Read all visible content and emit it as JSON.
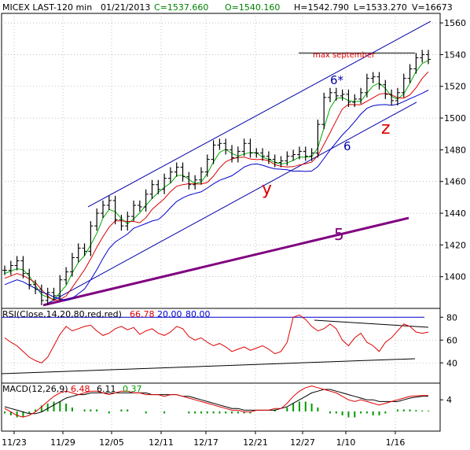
{
  "header": {
    "symbol": "MICEX LAST-120 min",
    "date": "01/21/2013",
    "close": "C=1537.660",
    "open": "O=1540.160",
    "high": "H=1542.790",
    "low": "L=1533.270",
    "volume": "V=16673"
  },
  "colors": {
    "price_bars": "#000000",
    "ma_fast": "#00aa00",
    "ma_mid": "#dd0000",
    "ma_slow": "#0000cc",
    "channel": "#0000aa",
    "trendline_5": "#800080",
    "wave_labels": "#dd0000",
    "rsi": "#dd0000",
    "macd": "#dd0000",
    "macd_signal": "#000000",
    "macd_hist": "#009900",
    "grid": "#999999"
  },
  "chart_data": [
    {
      "type": "candlestick",
      "panel": "price",
      "ylim": [
        1380,
        1566
      ],
      "y_ticks": [
        1400,
        1420,
        1440,
        1460,
        1480,
        1500,
        1520,
        1540,
        1560
      ],
      "x_tick_labels": [
        "11/23",
        "11/29",
        "12/05",
        "12/11",
        "12/17",
        "12/21",
        "12/27",
        "1/10",
        "1/16"
      ],
      "series": [
        {
          "name": "price",
          "values": [
            1404,
            1407,
            1410,
            1402,
            1395,
            1392,
            1385,
            1390,
            1388,
            1398,
            1403,
            1412,
            1418,
            1416,
            1432,
            1440,
            1445,
            1448,
            1436,
            1432,
            1438,
            1445,
            1444,
            1452,
            1458,
            1455,
            1462,
            1466,
            1469,
            1463,
            1458,
            1461,
            1466,
            1474,
            1483,
            1484,
            1480,
            1475,
            1479,
            1484,
            1478,
            1478,
            1476,
            1474,
            1472,
            1473,
            1476,
            1477,
            1479,
            1476,
            1478,
            1496,
            1513,
            1516,
            1514,
            1515,
            1510,
            1512,
            1516,
            1525,
            1526,
            1521,
            1515,
            1511,
            1516,
            1525,
            1531,
            1538,
            1540,
            1537
          ]
        }
      ],
      "annotations": {
        "max_label": "max september",
        "max_level": 1541,
        "channel_label": "6*",
        "lower_channel_label": "6",
        "trendline_label": "5",
        "wave_y": "y",
        "wave_z": "z"
      }
    },
    {
      "type": "line",
      "panel": "rsi",
      "title": "RSI(Close,14,20,80,red,red)",
      "current_value": "66.78",
      "low_level": "20.00",
      "high_level": "80.00",
      "y_ticks": [
        "80",
        "60",
        "40"
      ],
      "series": [
        {
          "name": "RSI",
          "values": [
            62,
            58,
            55,
            50,
            45,
            42,
            40,
            45,
            55,
            65,
            72,
            68,
            70,
            72,
            73,
            68,
            64,
            66,
            70,
            72,
            69,
            71,
            65,
            68,
            70,
            66,
            64,
            67,
            72,
            70,
            63,
            60,
            62,
            58,
            55,
            57,
            54,
            50,
            52,
            54,
            51,
            53,
            55,
            52,
            48,
            50,
            58,
            80,
            82,
            78,
            72,
            68,
            70,
            74,
            70,
            60,
            55,
            62,
            66,
            58,
            55,
            50,
            58,
            62,
            68,
            74,
            72,
            67,
            66,
            67
          ]
        }
      ]
    },
    {
      "type": "line",
      "panel": "macd",
      "title": "MACD(12,26,9)",
      "macd_value": "6.48",
      "signal_value": "6.11",
      "hist_value": "0.37",
      "y_ticks": [
        "4"
      ],
      "series": [
        {
          "name": "MACD",
          "values": [
            -1,
            -3,
            -5,
            -6,
            -5,
            -3,
            0,
            3,
            6,
            8,
            9,
            8,
            7,
            8,
            9,
            9,
            8,
            7,
            8,
            9,
            9,
            8,
            8,
            7,
            7,
            7,
            6,
            7,
            7,
            6,
            5,
            4,
            3,
            2,
            1,
            0,
            -1,
            -2,
            -2,
            -3,
            -3,
            -2,
            -2,
            -2,
            -1,
            -1,
            2,
            6,
            9,
            11,
            12,
            11,
            10,
            9,
            8,
            6,
            4,
            3,
            4,
            3,
            2,
            1,
            2,
            3,
            4,
            5,
            6,
            6.3,
            6.48,
            6.48
          ]
        },
        {
          "name": "Signal",
          "values": [
            0,
            -1,
            -2,
            -3,
            -4,
            -4,
            -3,
            -1,
            1,
            3,
            5,
            6,
            7,
            7,
            8,
            8,
            8,
            8,
            8,
            8,
            8,
            8,
            8,
            8,
            7,
            7,
            7,
            7,
            7,
            6,
            6,
            5,
            4,
            3,
            2,
            1,
            0,
            -1,
            -1,
            -2,
            -2,
            -2,
            -2,
            -2,
            -2,
            -1,
            0,
            2,
            4,
            6,
            8,
            9,
            10,
            10,
            9,
            8,
            7,
            6,
            5,
            4,
            4,
            3,
            3,
            3,
            3,
            4,
            5,
            5.6,
            6.0,
            6.11
          ]
        }
      ]
    }
  ]
}
